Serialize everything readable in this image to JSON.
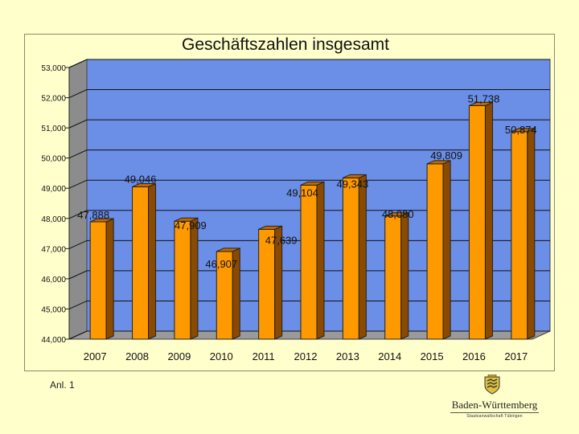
{
  "chart_data": {
    "type": "bar",
    "title": "Geschäftszahlen insgesamt",
    "xlabel": "",
    "ylabel": "",
    "categories": [
      "2007",
      "2008",
      "2009",
      "2010",
      "2011",
      "2012",
      "2013",
      "2014",
      "2015",
      "2016",
      "2017"
    ],
    "values": [
      47888,
      49046,
      47909,
      46907,
      47639,
      49104,
      49343,
      48080,
      49809,
      51738,
      50874
    ],
    "value_labels": [
      "47,888",
      "49,046",
      "47,909",
      "46,907",
      "47,639",
      "49,104",
      "49,343",
      "48,080",
      "49,809",
      "51,738",
      "50,874"
    ],
    "ylim": [
      44000,
      53000
    ],
    "y_ticks": [
      44000,
      45000,
      46000,
      47000,
      48000,
      49000,
      50000,
      51000,
      52000,
      53000
    ],
    "y_tick_labels": [
      "44,000",
      "45,000",
      "46,000",
      "47,000",
      "48,000",
      "49,000",
      "50,000",
      "51,000",
      "52,000",
      "53,000"
    ],
    "grid": true,
    "legend": "none",
    "three_d": true,
    "colors": {
      "bar": "#ff9900",
      "bar_side": "#8a4a00",
      "bar_top": "#c06a00",
      "wall": "#6b8ee6",
      "wall_side": "#8c8c8c",
      "floor": "#9a9a9a",
      "grid": "#111111"
    }
  },
  "footer": {
    "note": "Anl. 1",
    "brand_name": "Baden-Württemberg",
    "brand_sub": "Staatsanwaltschaft Tübingen"
  }
}
